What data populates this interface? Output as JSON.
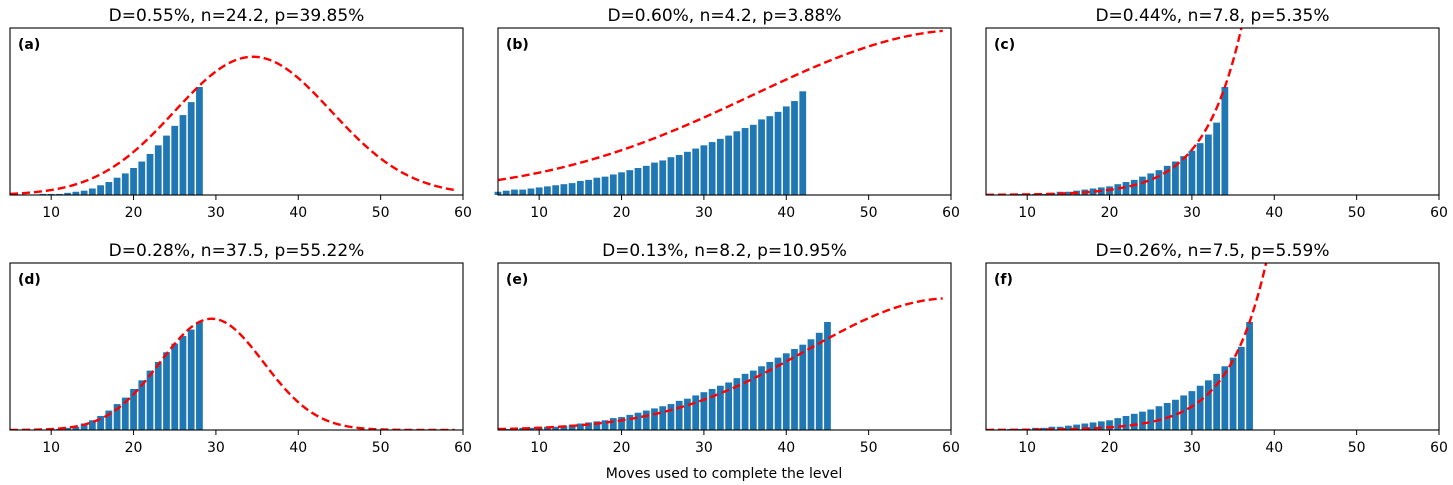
{
  "chart_data": {
    "type": "bar",
    "xlabel": "Moves used to complete the level",
    "xlim": [
      5,
      60
    ],
    "xticks": [
      10,
      20,
      30,
      40,
      50,
      60
    ],
    "bar_color": "#1f77b4",
    "fit_color": "#ff0000",
    "panels": [
      {
        "label": "(a)",
        "title": "D=0.55%, n=24.2, p=39.85%",
        "fit": "bell",
        "mode": 34.5,
        "sigma": 9.5,
        "peak": 1.28,
        "x": [
          5,
          6,
          7,
          8,
          9,
          10,
          11,
          12,
          13,
          14,
          15,
          16,
          17,
          18,
          19,
          20,
          21,
          22,
          23,
          24,
          25,
          26,
          27,
          28
        ],
        "values": [
          0.0,
          0.0,
          0.0,
          0.0,
          0.01,
          0.01,
          0.01,
          0.02,
          0.03,
          0.04,
          0.06,
          0.09,
          0.12,
          0.16,
          0.2,
          0.25,
          0.31,
          0.38,
          0.46,
          0.55,
          0.64,
          0.74,
          0.86,
          1.0
        ]
      },
      {
        "label": "(b)",
        "title": "D=0.60%, n=4.2, p=3.88%",
        "fit": "bell",
        "mode": 62,
        "sigma": 26,
        "peak": 1.53,
        "x": [
          5,
          6,
          7,
          8,
          9,
          10,
          11,
          12,
          13,
          14,
          15,
          16,
          17,
          18,
          19,
          20,
          21,
          22,
          23,
          24,
          25,
          26,
          27,
          28,
          29,
          30,
          31,
          32,
          33,
          34,
          35,
          36,
          37,
          38,
          39,
          40,
          41,
          42
        ],
        "values": [
          0.03,
          0.04,
          0.05,
          0.05,
          0.06,
          0.07,
          0.08,
          0.09,
          0.1,
          0.11,
          0.13,
          0.14,
          0.16,
          0.17,
          0.19,
          0.21,
          0.23,
          0.25,
          0.27,
          0.3,
          0.32,
          0.35,
          0.37,
          0.4,
          0.43,
          0.46,
          0.49,
          0.52,
          0.55,
          0.59,
          0.62,
          0.65,
          0.7,
          0.73,
          0.77,
          0.82,
          0.87,
          0.96
        ]
      },
      {
        "label": "(c)",
        "title": "D=0.44%, n=7.8, p=5.35%",
        "fit": "rising",
        "x": [
          5,
          6,
          7,
          8,
          9,
          10,
          11,
          12,
          13,
          14,
          15,
          16,
          17,
          18,
          19,
          20,
          21,
          22,
          23,
          24,
          25,
          26,
          27,
          28,
          29,
          30,
          31,
          32,
          33,
          34
        ],
        "values": [
          0.0,
          0.0,
          0.0,
          0.0,
          0.01,
          0.01,
          0.01,
          0.01,
          0.02,
          0.03,
          0.03,
          0.04,
          0.05,
          0.06,
          0.07,
          0.08,
          0.1,
          0.12,
          0.14,
          0.17,
          0.2,
          0.23,
          0.27,
          0.31,
          0.36,
          0.41,
          0.48,
          0.56,
          0.67,
          1.0
        ]
      },
      {
        "label": "(d)",
        "title": "D=0.28%, n=37.5, p=55.22%",
        "fit": "bell",
        "mode": 29.5,
        "sigma": 6.3,
        "peak": 1.03,
        "x": [
          5,
          6,
          7,
          8,
          9,
          10,
          11,
          12,
          13,
          14,
          15,
          16,
          17,
          18,
          19,
          20,
          21,
          22,
          23,
          24,
          25,
          26,
          27,
          28
        ],
        "values": [
          0.0,
          0.0,
          0.0,
          0.0,
          0.0,
          0.01,
          0.01,
          0.02,
          0.03,
          0.06,
          0.09,
          0.13,
          0.18,
          0.24,
          0.3,
          0.38,
          0.46,
          0.55,
          0.63,
          0.72,
          0.8,
          0.87,
          0.93,
          1.0
        ]
      },
      {
        "label": "(e)",
        "title": "D=0.13%, n=8.2, p=10.95%",
        "fit": "bell",
        "mode": 60,
        "sigma": 17.5,
        "peak": 1.22,
        "x": [
          5,
          6,
          7,
          8,
          9,
          10,
          11,
          12,
          13,
          14,
          15,
          16,
          17,
          18,
          19,
          20,
          21,
          22,
          23,
          24,
          25,
          26,
          27,
          28,
          29,
          30,
          31,
          32,
          33,
          34,
          35,
          36,
          37,
          38,
          39,
          40,
          41,
          42,
          43,
          44,
          45
        ],
        "values": [
          0.0,
          0.01,
          0.01,
          0.02,
          0.02,
          0.02,
          0.03,
          0.03,
          0.04,
          0.05,
          0.06,
          0.07,
          0.08,
          0.09,
          0.11,
          0.12,
          0.14,
          0.16,
          0.18,
          0.2,
          0.22,
          0.24,
          0.27,
          0.29,
          0.32,
          0.35,
          0.38,
          0.41,
          0.44,
          0.48,
          0.52,
          0.55,
          0.59,
          0.63,
          0.67,
          0.71,
          0.75,
          0.79,
          0.84,
          0.9,
          1.0
        ]
      },
      {
        "label": "(f)",
        "title": "D=0.26%, n=7.5, p=5.59%",
        "fit": "rising",
        "x": [
          5,
          6,
          7,
          8,
          9,
          10,
          11,
          12,
          13,
          14,
          15,
          16,
          17,
          18,
          19,
          20,
          21,
          22,
          23,
          24,
          25,
          26,
          27,
          28,
          29,
          30,
          31,
          32,
          33,
          34,
          35,
          36,
          37
        ],
        "values": [
          0.0,
          0.0,
          0.0,
          0.01,
          0.01,
          0.01,
          0.02,
          0.02,
          0.03,
          0.03,
          0.04,
          0.05,
          0.06,
          0.07,
          0.08,
          0.09,
          0.11,
          0.13,
          0.15,
          0.17,
          0.19,
          0.22,
          0.25,
          0.28,
          0.32,
          0.36,
          0.41,
          0.46,
          0.52,
          0.59,
          0.67,
          0.77,
          1.0
        ]
      }
    ]
  }
}
